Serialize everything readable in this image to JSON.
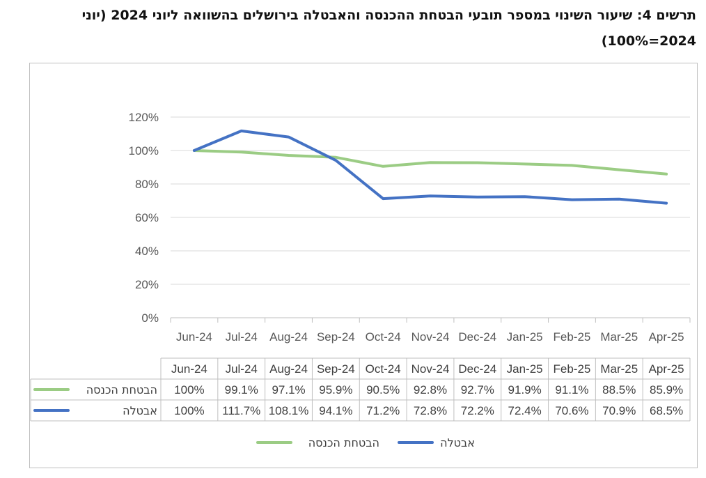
{
  "title": "תרשים 4: שיעור השינוי במספר תובעי הבטחת ההכנסה והאבטלה בירושלים בהשוואה ליוני 2024 (יוני 2024=100%)",
  "chart_data": {
    "type": "line",
    "categories": [
      "Jun-24",
      "Jul-24",
      "Aug-24",
      "Sep-24",
      "Oct-24",
      "Nov-24",
      "Dec-24",
      "Jan-25",
      "Feb-25",
      "Mar-25",
      "Apr-25"
    ],
    "y_ticks": [
      "0%",
      "20%",
      "40%",
      "60%",
      "80%",
      "100%",
      "120%"
    ],
    "ylim": [
      0,
      120
    ],
    "grid": true,
    "legend_position": "bottom",
    "series": [
      {
        "name": "הבטחת הכנסה",
        "color": "#9bcc84",
        "values": [
          100,
          99.1,
          97.1,
          95.9,
          90.5,
          92.8,
          92.7,
          91.9,
          91.1,
          88.5,
          85.9
        ],
        "labels": [
          "100%",
          "99.1%",
          "97.1%",
          "95.9%",
          "90.5%",
          "92.8%",
          "92.7%",
          "91.9%",
          "91.1%",
          "88.5%",
          "85.9%"
        ]
      },
      {
        "name": "אבטלה",
        "color": "#4472c4",
        "values": [
          100,
          111.7,
          108.1,
          94.1,
          71.2,
          72.8,
          72.2,
          72.4,
          70.6,
          70.9,
          68.5
        ],
        "labels": [
          "100%",
          "111.7%",
          "108.1%",
          "94.1%",
          "71.2%",
          "72.8%",
          "72.2%",
          "72.4%",
          "70.6%",
          "70.9%",
          "68.5%"
        ]
      }
    ]
  }
}
